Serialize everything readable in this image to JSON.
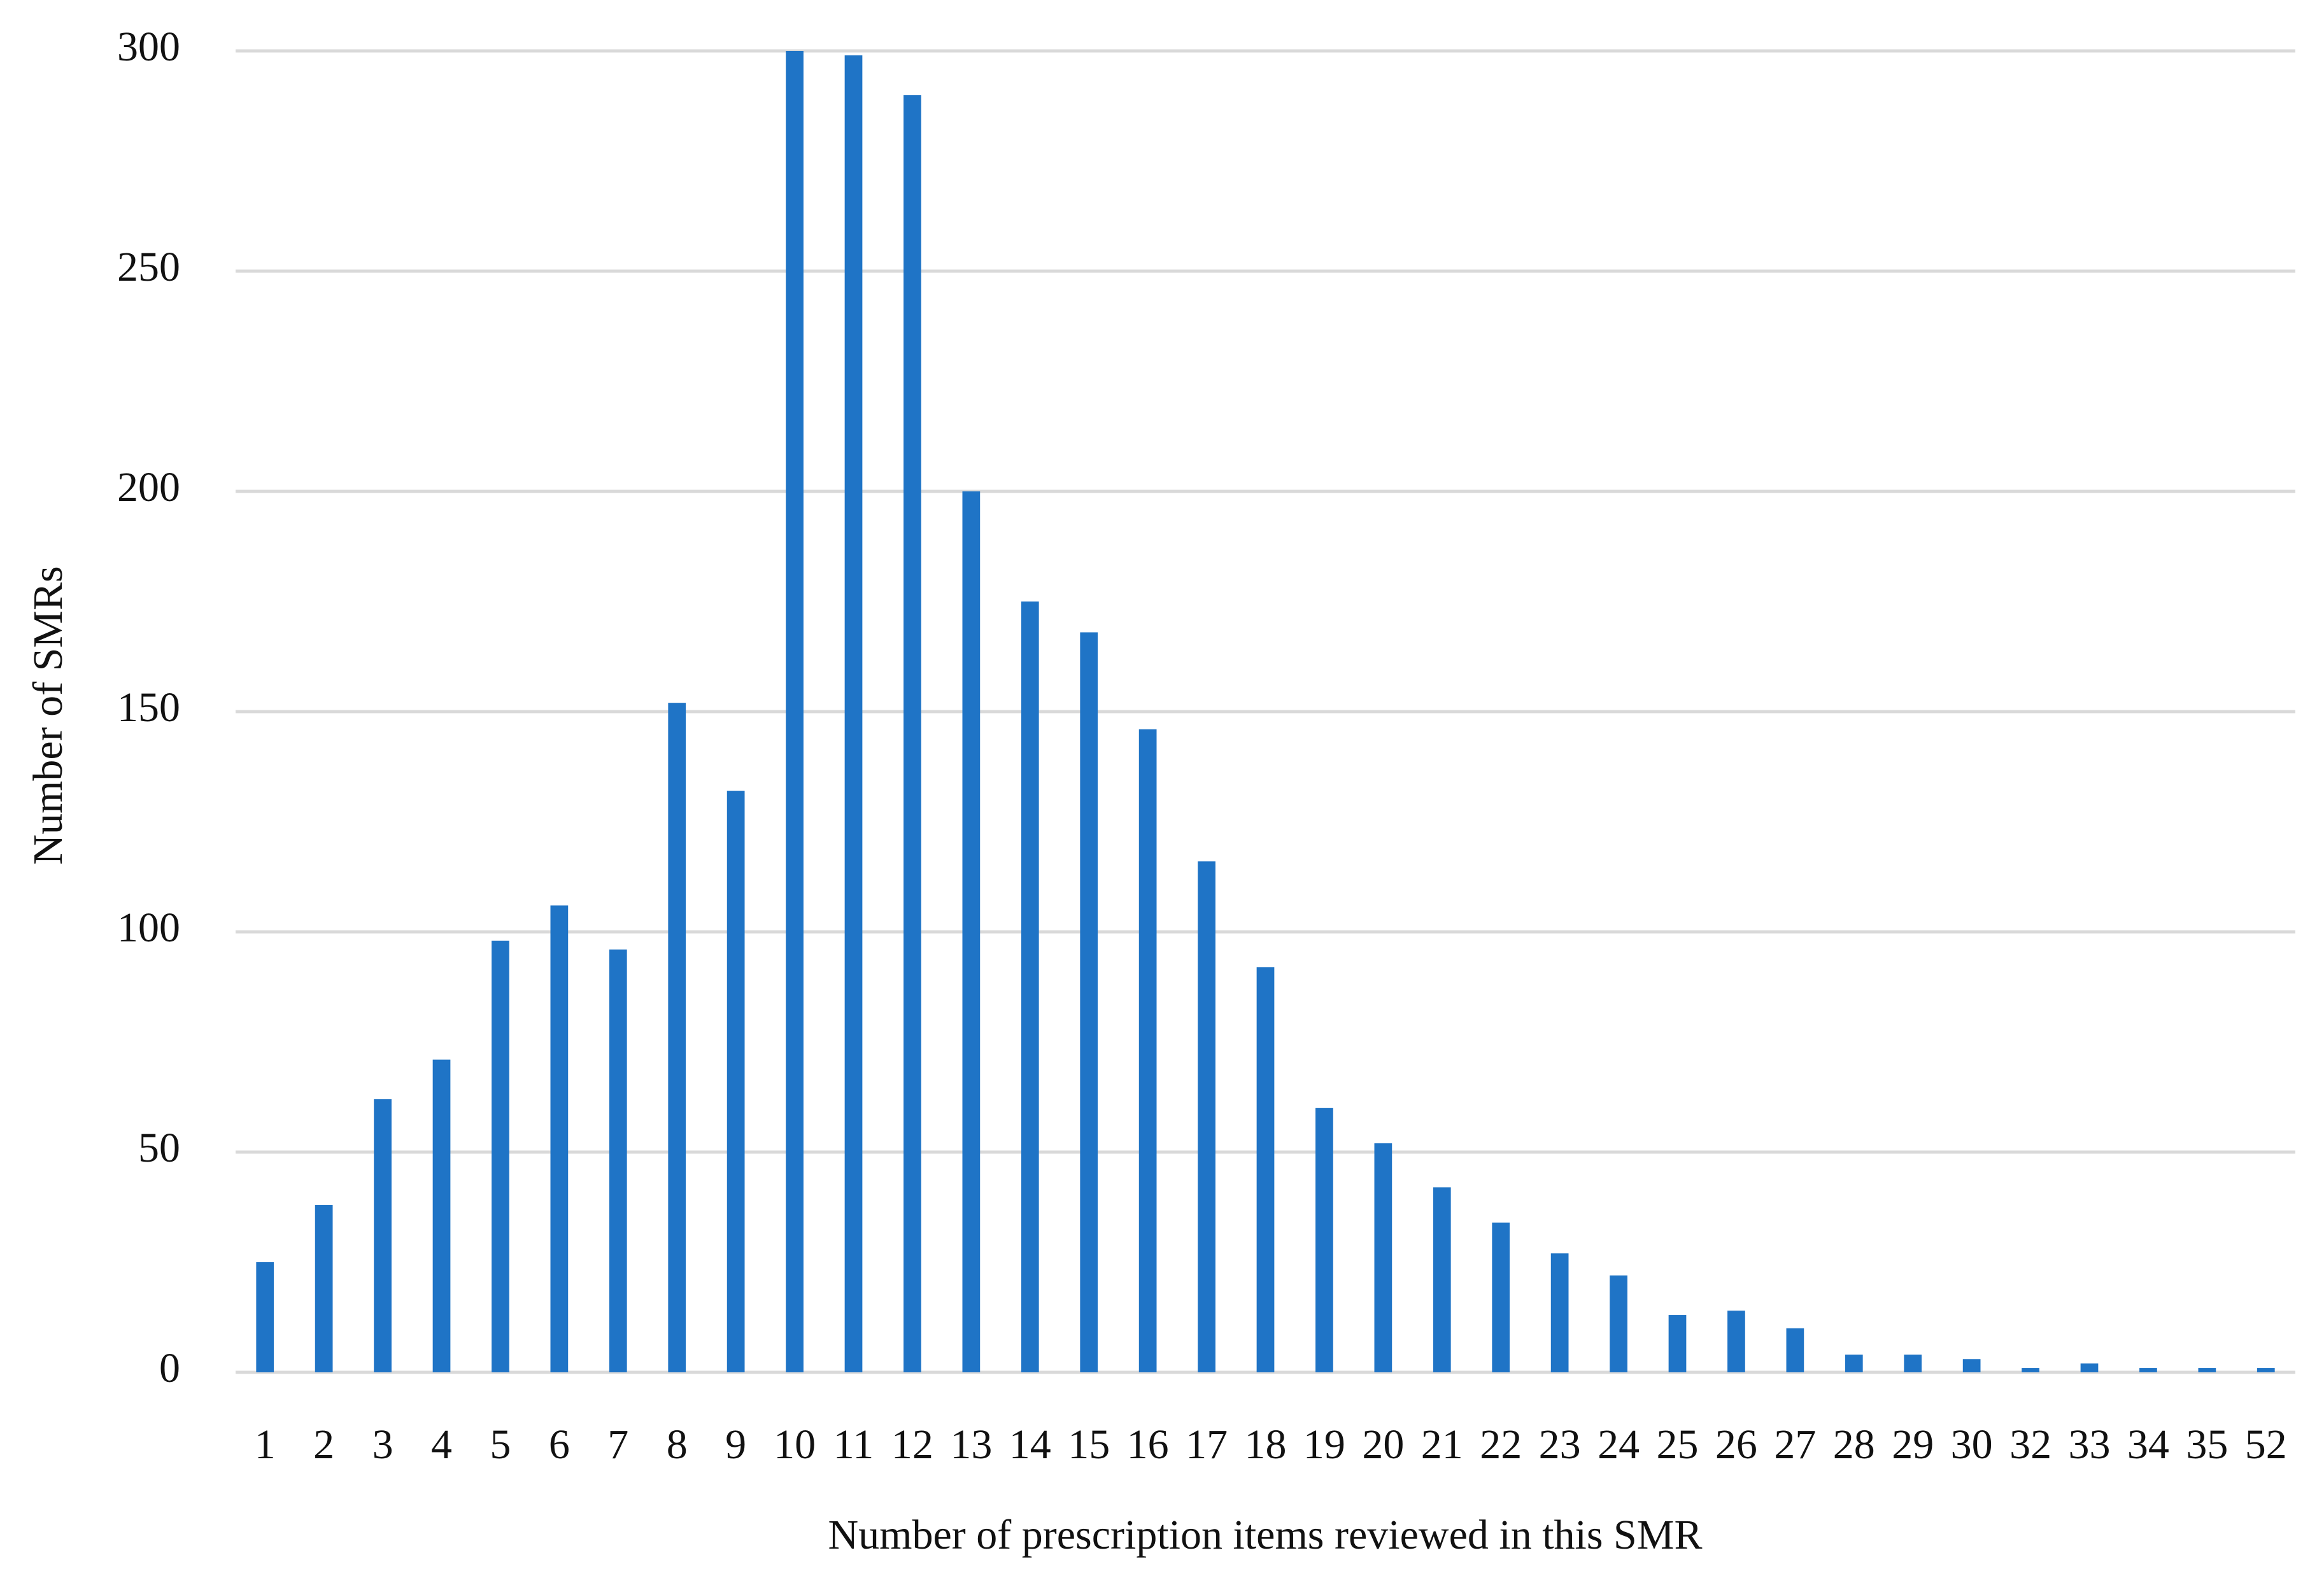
{
  "chart_data": {
    "type": "bar",
    "x_label": "Number of prescription items reviewed in this SMR",
    "y_label": "Number of SMRs",
    "categories": [
      "1",
      "2",
      "3",
      "4",
      "5",
      "6",
      "7",
      "8",
      "9",
      "10",
      "11",
      "12",
      "13",
      "14",
      "15",
      "16",
      "17",
      "18",
      "19",
      "20",
      "21",
      "22",
      "23",
      "24",
      "25",
      "26",
      "27",
      "28",
      "29",
      "30",
      "32",
      "33",
      "34",
      "35",
      "52"
    ],
    "values": [
      25,
      38,
      62,
      71,
      98,
      106,
      96,
      152,
      132,
      300,
      299,
      290,
      200,
      175,
      168,
      146,
      116,
      92,
      60,
      52,
      42,
      34,
      27,
      22,
      13,
      14,
      10,
      4,
      4,
      3,
      1,
      2,
      1,
      1,
      1
    ],
    "color": "#1f74c6",
    "ylim": [
      0,
      300
    ],
    "yticks": [
      0,
      50,
      100,
      150,
      200,
      250,
      300
    ],
    "grid": true
  }
}
